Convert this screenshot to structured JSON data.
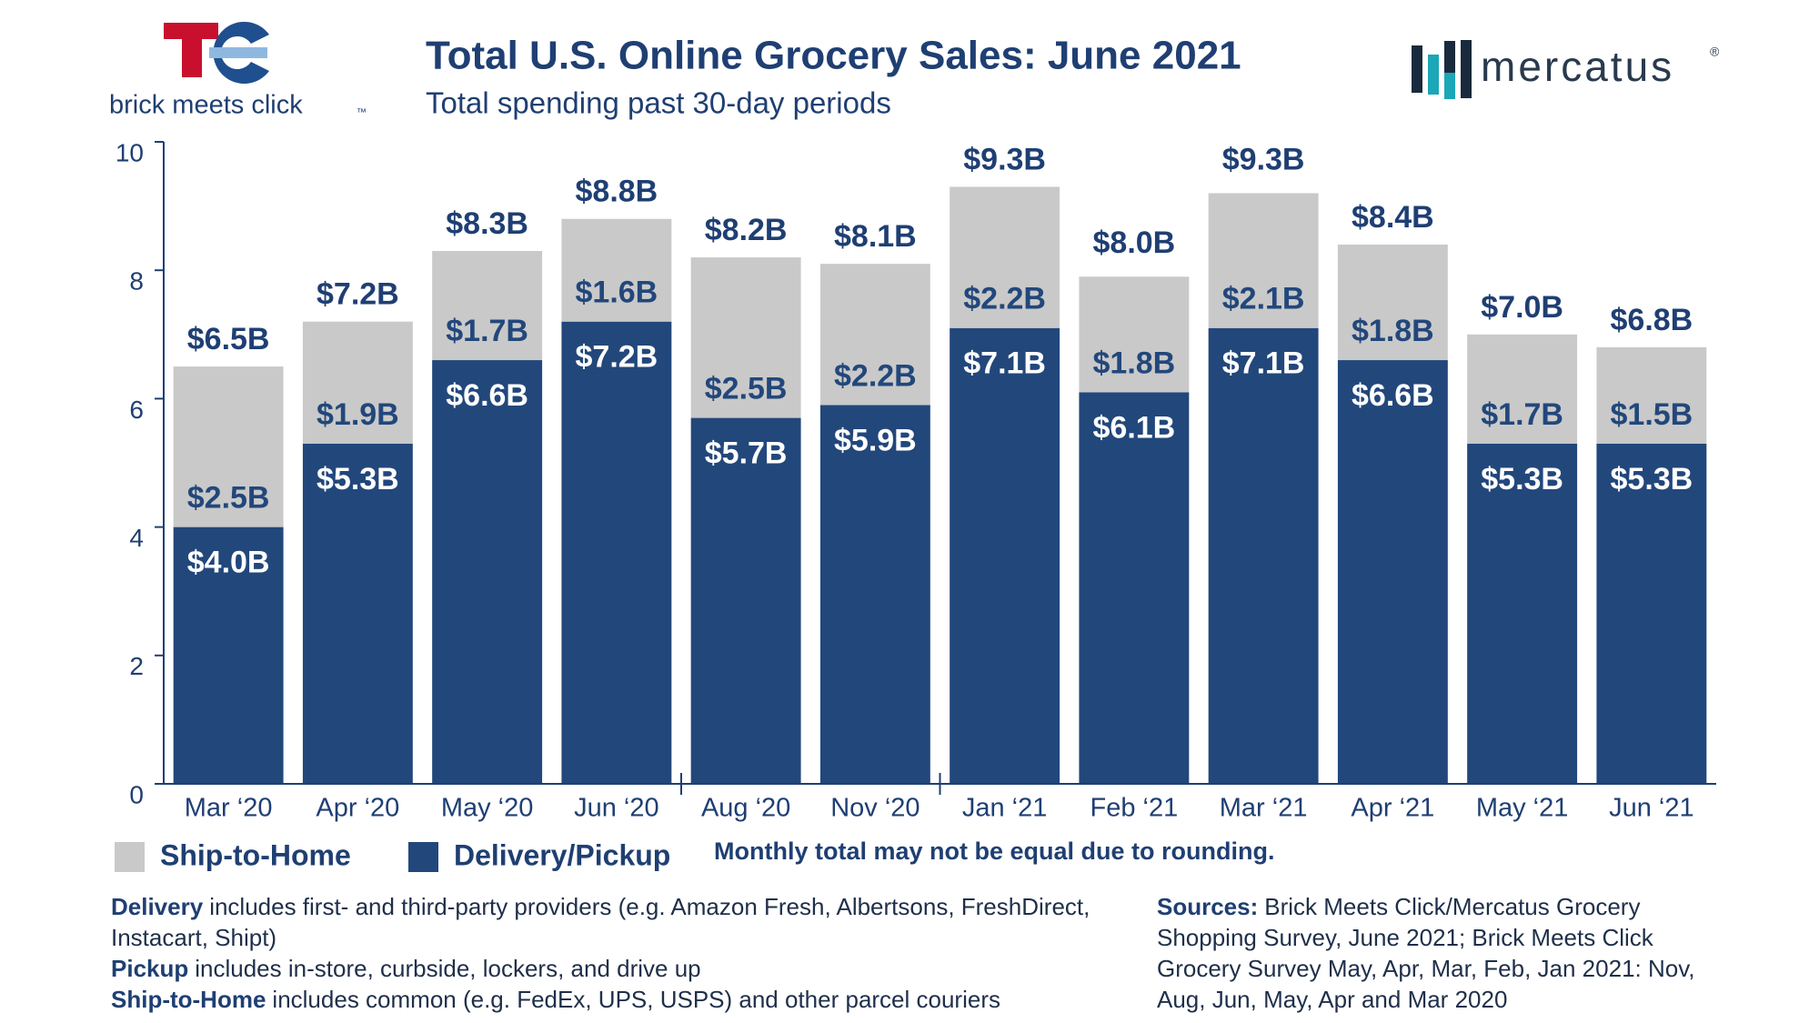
{
  "brand_left": {
    "name": "brick meets click",
    "mark": "™"
  },
  "brand_right": {
    "name": "mercatus",
    "mark": "®"
  },
  "chart_data": {
    "type": "stacked_bar",
    "title": "Total U.S. Online Grocery Sales: June 2021",
    "subtitle": "Total spending past 30-day periods",
    "categories": [
      "Mar ‘20",
      "Apr ‘20",
      "May ‘20",
      "Jun ‘20",
      "Aug ‘20",
      "Nov ‘20",
      "Jan ‘21",
      "Feb ‘21",
      "Mar ‘21",
      "Apr ‘21",
      "May ‘21",
      "Jun ‘21"
    ],
    "series": [
      {
        "name": "Delivery/Pickup",
        "color": "#22477b",
        "label_color": "#ffffff",
        "values": [
          4.0,
          5.3,
          6.6,
          7.2,
          5.7,
          5.9,
          7.1,
          6.1,
          7.1,
          6.6,
          5.3,
          5.3
        ],
        "value_labels": [
          "$4.0B",
          "$5.3B",
          "$6.6B",
          "$7.2B",
          "$5.7B",
          "$5.9B",
          "$7.1B",
          "$6.1B",
          "$7.1B",
          "$6.6B",
          "$5.3B",
          "$5.3B"
        ]
      },
      {
        "name": "Ship-to-Home",
        "color": "#c9c9c9",
        "label_color": "#22477b",
        "values": [
          2.5,
          1.9,
          1.7,
          1.6,
          2.5,
          2.2,
          2.2,
          1.8,
          2.1,
          1.8,
          1.7,
          1.5
        ],
        "value_labels": [
          "$2.5B",
          "$1.9B",
          "$1.7B",
          "$1.6B",
          "$2.5B",
          "$2.2B",
          "$2.2B",
          "$1.8B",
          "$2.1B",
          "$1.8B",
          "$1.7B",
          "$1.5B"
        ]
      }
    ],
    "totals": {
      "values": [
        6.5,
        7.2,
        8.3,
        8.8,
        8.2,
        8.1,
        9.3,
        8.0,
        9.3,
        8.4,
        7.0,
        6.8
      ],
      "value_labels": [
        "$6.5B",
        "$7.2B",
        "$8.3B",
        "$8.8B",
        "$8.2B",
        "$8.1B",
        "$9.3B",
        "$8.0B",
        "$9.3B",
        "$8.4B",
        "$7.0B",
        "$6.8B"
      ]
    },
    "ylim": [
      0,
      10
    ],
    "yticks": [
      0,
      2,
      4,
      6,
      8,
      10
    ],
    "legend_order": [
      1,
      0
    ],
    "note": "Monthly total may not be equal due to rounding."
  },
  "footnotes": [
    {
      "term": "Delivery",
      "text": "includes first- and third-party providers (e.g. Amazon Fresh, Albertsons, FreshDirect, Instacart, Shipt)"
    },
    {
      "term": "Pickup",
      "text": "includes in-store, curbside, lockers, and drive up"
    },
    {
      "term": "Ship-to-Home",
      "text": "includes common (e.g. FedEx, UPS, USPS) and other parcel couriers"
    }
  ],
  "sources": {
    "term": "Sources:",
    "text": "Brick Meets Click/Mercatus Grocery Shopping Survey, June 2021; Brick Meets Click Grocery Survey May, Apr, Mar, Feb, Jan 2021: Nov, Aug, Jun, May, Apr and Mar 2020"
  }
}
